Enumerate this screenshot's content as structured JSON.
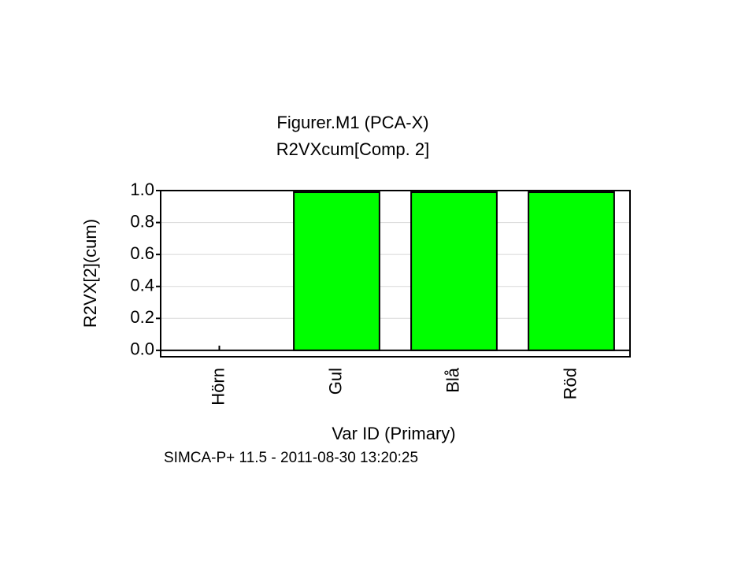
{
  "chart_data": {
    "type": "bar",
    "title": "Figurer.M1 (PCA-X)",
    "subtitle": "R2VXcum[Comp. 2]",
    "y_label": "R2VX[2](cum)",
    "x_label": "Var ID (Primary)",
    "footer": "SIMCA-P+ 11.5 - 2011-08-30 13:20:25",
    "categories": [
      "Hörn",
      "Gul",
      "Blå",
      "Röd"
    ],
    "values": [
      0,
      0.99,
      0.99,
      0.99
    ],
    "color": "#00ff00",
    "ylim": [
      -0.04,
      1.0
    ],
    "yticks": [
      {
        "value": 0,
        "label": "0.0"
      },
      0.2,
      0.4,
      0.6,
      0.8,
      {
        "value": 1,
        "label": "1.0"
      }
    ],
    "grid": true
  }
}
